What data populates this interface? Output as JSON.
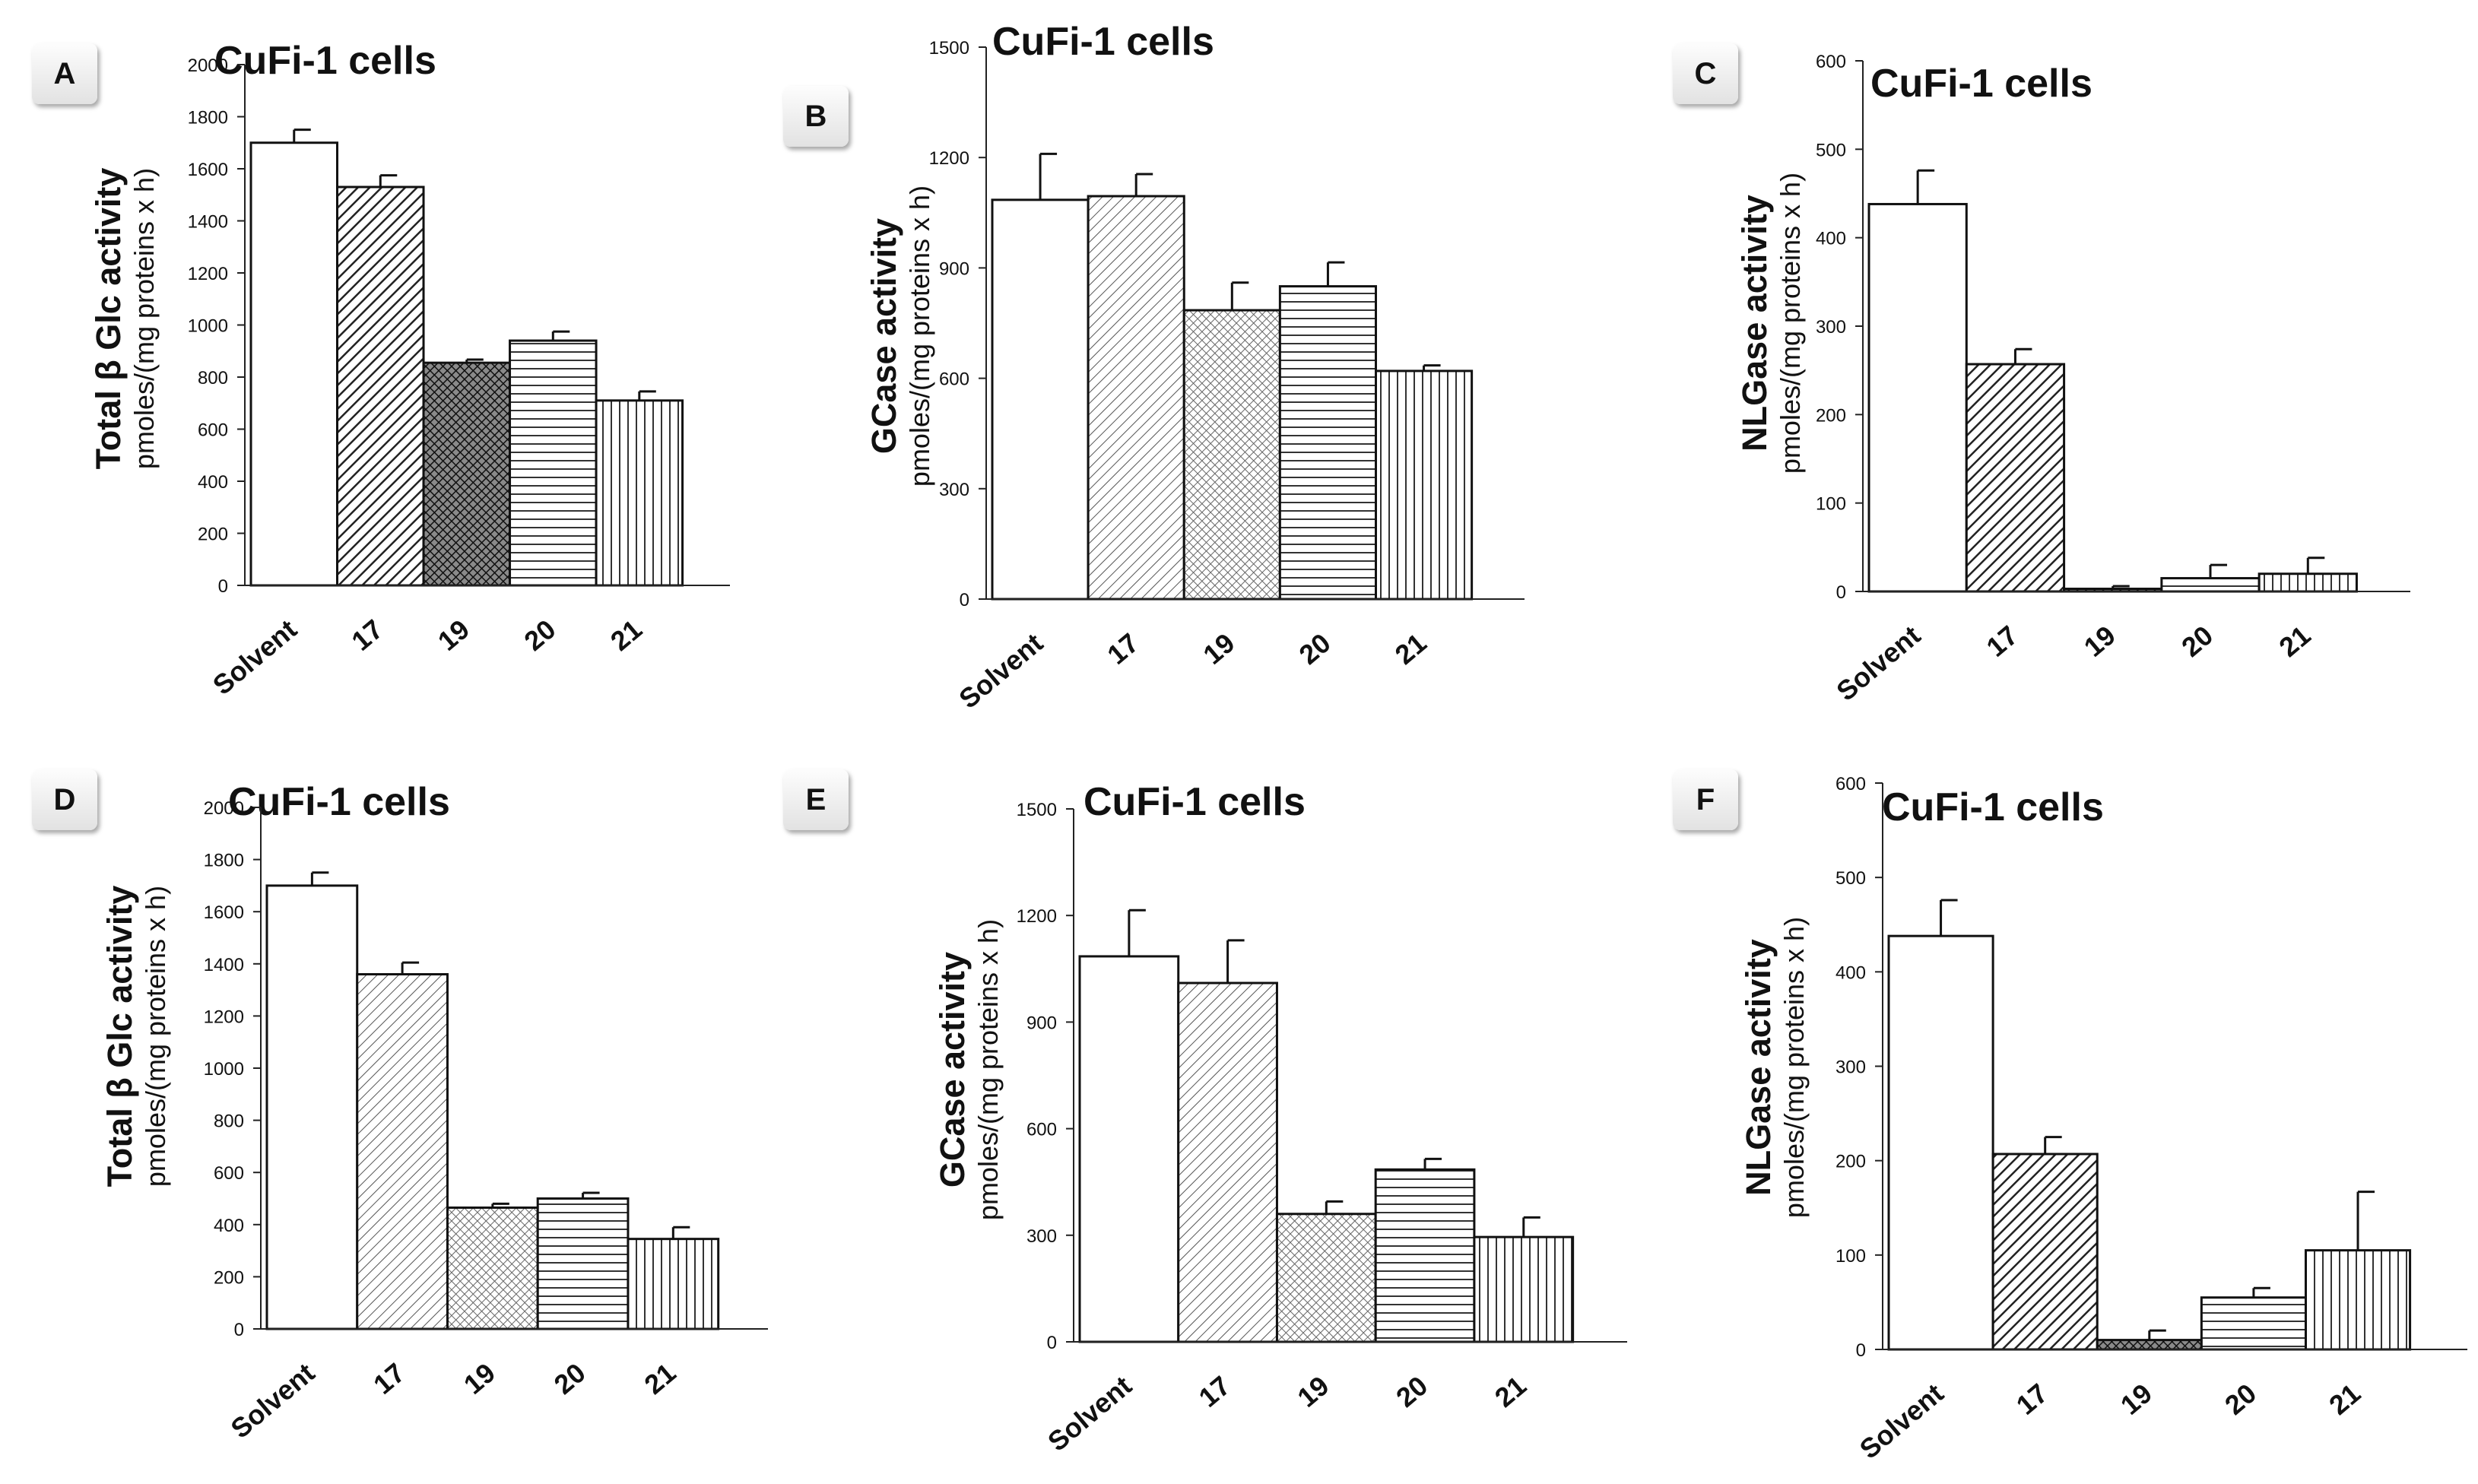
{
  "figure": {
    "panels": [
      {
        "label": "A",
        "title": "CuFi-1 cells",
        "ylabel_main": "Total β Glc activity",
        "ylabel_unit": "pmoles/(mg proteins x h)"
      },
      {
        "label": "B",
        "title": "CuFi-1 cells",
        "ylabel_main": "GCase activity",
        "ylabel_unit": "pmoles/(mg proteins x h)"
      },
      {
        "label": "C",
        "title": "CuFi-1 cells",
        "ylabel_main": "NLGase activity",
        "ylabel_unit": "pmoles/(mg proteins x h)"
      },
      {
        "label": "D",
        "title": "CuFi-1 cells",
        "ylabel_main": "Total β Glc activity",
        "ylabel_unit": "pmoles/(mg proteins x h)"
      },
      {
        "label": "E",
        "title": "CuFi-1 cells",
        "ylabel_main": "GCase activity",
        "ylabel_unit": "pmoles/(mg proteins x h)"
      },
      {
        "label": "F",
        "title": "CuFi-1 cells",
        "ylabel_main": "NLGase activity",
        "ylabel_unit": "pmoles/(mg proteins x h)"
      }
    ]
  },
  "chart_data": [
    {
      "type": "bar",
      "panel": "A",
      "title": "CuFi-1 cells",
      "xlabel": "",
      "ylabel": "Total β Glc activity pmoles/(mg proteins x h)",
      "categories": [
        "Solvent",
        "17",
        "19",
        "20",
        "21"
      ],
      "values": [
        1700,
        1530,
        855,
        940,
        710
      ],
      "errors": [
        50,
        45,
        12,
        35,
        35
      ],
      "patterns": [
        "none",
        "diag-dark",
        "cross-dark",
        "horizontal",
        "vertical"
      ],
      "ylim": [
        0,
        2000
      ],
      "yticks": [
        0,
        200,
        400,
        600,
        800,
        1000,
        1200,
        1400,
        1600,
        1800,
        2000
      ]
    },
    {
      "type": "bar",
      "panel": "B",
      "title": "CuFi-1 cells",
      "xlabel": "",
      "ylabel": "GCase activity pmoles/(mg proteins x h)",
      "categories": [
        "Solvent",
        "17",
        "19",
        "20",
        "21"
      ],
      "values": [
        1085,
        1095,
        785,
        850,
        620
      ],
      "errors": [
        125,
        60,
        75,
        65,
        15
      ],
      "patterns": [
        "none",
        "diag-light",
        "cross-light",
        "horizontal",
        "vertical"
      ],
      "ylim": [
        0,
        1500
      ],
      "yticks": [
        0,
        300,
        600,
        900,
        1200,
        1500
      ]
    },
    {
      "type": "bar",
      "panel": "C",
      "title": "CuFi-1 cells",
      "xlabel": "",
      "ylabel": "NLGase activity pmoles/(mg proteins x h)",
      "categories": [
        "Solvent",
        "17",
        "19",
        "20",
        "21"
      ],
      "values": [
        438,
        257,
        3,
        15,
        20
      ],
      "errors": [
        38,
        17,
        3,
        15,
        18
      ],
      "patterns": [
        "none",
        "diag-dark",
        "cross-dark",
        "horizontal",
        "vertical"
      ],
      "ylim": [
        0,
        600
      ],
      "yticks": [
        0,
        100,
        200,
        300,
        400,
        500,
        600
      ]
    },
    {
      "type": "bar",
      "panel": "D",
      "title": "CuFi-1 cells",
      "xlabel": "",
      "ylabel": "Total β Glc activity pmoles/(mg proteins x h)",
      "categories": [
        "Solvent",
        "17",
        "19",
        "20",
        "21"
      ],
      "values": [
        1700,
        1360,
        465,
        500,
        345
      ],
      "errors": [
        50,
        45,
        15,
        22,
        45
      ],
      "patterns": [
        "none",
        "diag-light",
        "cross-light",
        "horizontal",
        "vertical"
      ],
      "ylim": [
        0,
        2000
      ],
      "yticks": [
        0,
        200,
        400,
        600,
        800,
        1000,
        1200,
        1400,
        1600,
        1800,
        2000
      ]
    },
    {
      "type": "bar",
      "panel": "E",
      "title": "CuFi-1 cells",
      "xlabel": "",
      "ylabel": "GCase activity pmoles/(mg proteins x h)",
      "categories": [
        "Solvent",
        "17",
        "19",
        "20",
        "21"
      ],
      "values": [
        1085,
        1010,
        360,
        485,
        295
      ],
      "errors": [
        130,
        120,
        35,
        30,
        55
      ],
      "patterns": [
        "none",
        "diag-light",
        "cross-light",
        "horizontal",
        "vertical"
      ],
      "ylim": [
        0,
        1500
      ],
      "yticks": [
        0,
        300,
        600,
        900,
        1200,
        1500
      ]
    },
    {
      "type": "bar",
      "panel": "F",
      "title": "CuFi-1 cells",
      "xlabel": "",
      "ylabel": "NLGase activity pmoles/(mg proteins x h)",
      "categories": [
        "Solvent",
        "17",
        "19",
        "20",
        "21"
      ],
      "values": [
        438,
        207,
        10,
        55,
        105
      ],
      "errors": [
        38,
        18,
        10,
        10,
        62
      ],
      "patterns": [
        "none",
        "diag-dark",
        "cross-dark",
        "horizontal",
        "vertical"
      ],
      "ylim": [
        0,
        600
      ],
      "yticks": [
        0,
        100,
        200,
        300,
        400,
        500,
        600
      ]
    }
  ]
}
